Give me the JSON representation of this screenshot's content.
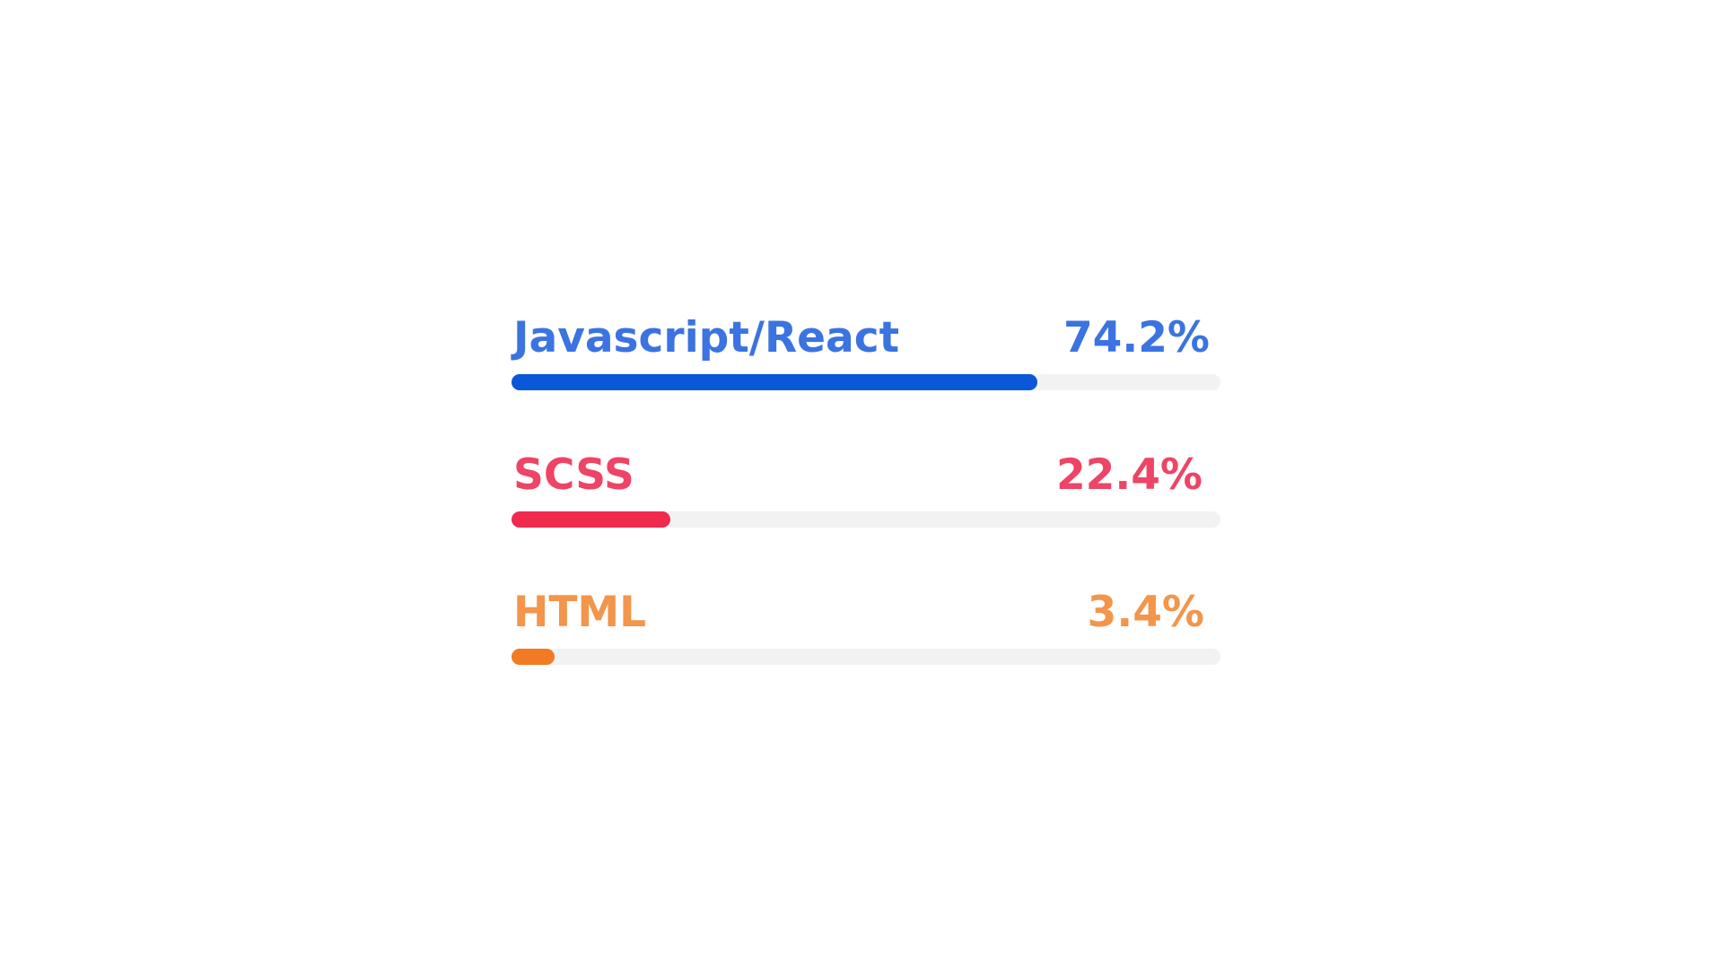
{
  "chart_data": {
    "type": "bar",
    "orientation": "horizontal",
    "categories": [
      "Javascript/React",
      "SCSS",
      "HTML"
    ],
    "values": [
      74.2,
      22.4,
      3.4
    ],
    "value_labels": [
      "74.2%",
      "22.4%",
      "3.4%"
    ],
    "label_colors": [
      "#3b73e0",
      "#ee4466",
      "#f3954a"
    ],
    "bar_colors": [
      "#0a57d8",
      "#ef2a4e",
      "#f27a24"
    ],
    "track_color": "#f2f2f2",
    "xlim": [
      0,
      100
    ],
    "grid": false
  }
}
